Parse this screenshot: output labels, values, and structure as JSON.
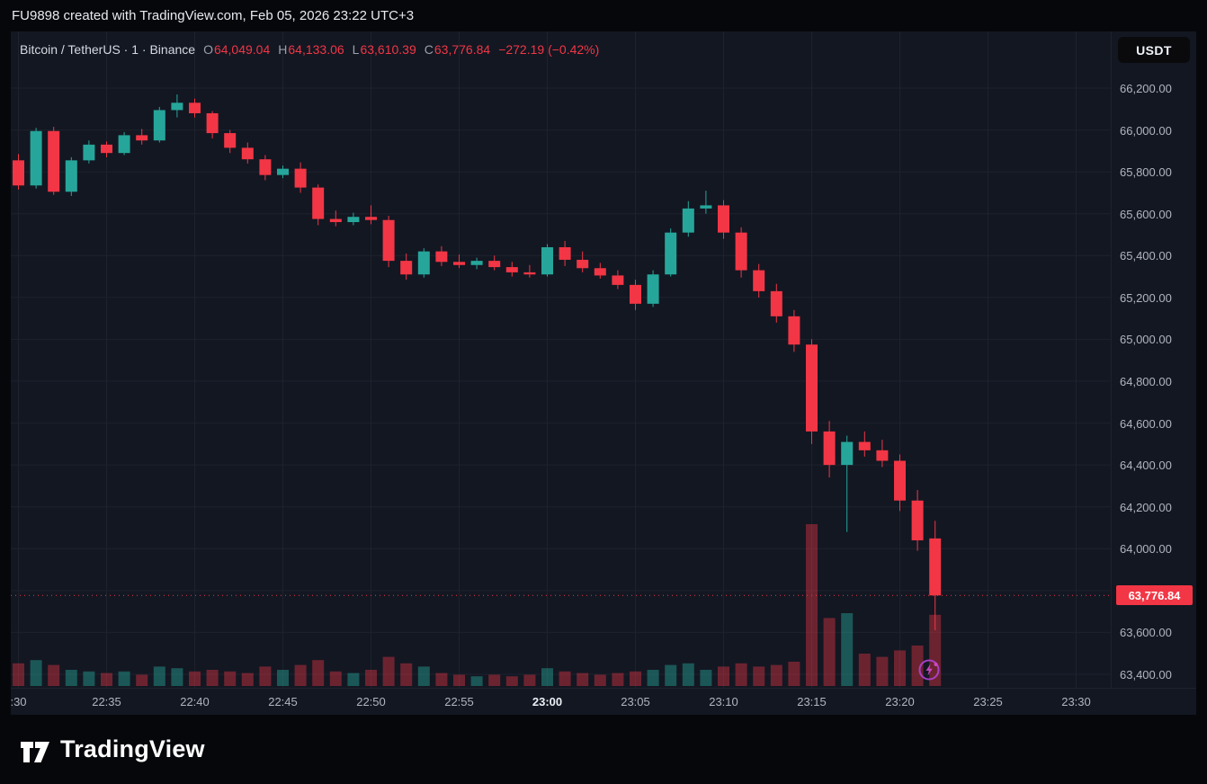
{
  "statusbar": {
    "text": "FU9898 created with TradingView.com, Feb 05, 2026 23:22 UTC+3"
  },
  "header": {
    "symbol_line": "Bitcoin / TetherUS · 1 · Binance",
    "ohlc": {
      "o_label": "O",
      "o": "64,049.04",
      "h_label": "H",
      "h": "64,133.06",
      "l_label": "L",
      "l": "63,610.39",
      "c_label": "C",
      "c": "63,776.84",
      "change": "−272.19 (−0.42%)"
    }
  },
  "currency_button": {
    "label": "USDT"
  },
  "price_line": {
    "label": "63,776.84",
    "value": 63776.84
  },
  "footer": {
    "logo_text": "TradingView"
  },
  "colors": {
    "up": "#26a69a",
    "down": "#f23645",
    "vol_up": "rgba(38,166,154,0.45)",
    "vol_down": "rgba(242,54,69,0.4)",
    "grid": "#1e222d",
    "axis_text": "#b2b5be",
    "price_line": "#f23645",
    "background": "#131722"
  },
  "chart_data": {
    "type": "candlestick",
    "title": "Bitcoin / TetherUS 1m Binance",
    "interval_minutes": 1,
    "visible_price_range": [
      63330,
      66470
    ],
    "grid": true,
    "price_ticks": [
      {
        "text": "66,200.00",
        "value": 66200
      },
      {
        "text": "66,000.00",
        "value": 66000
      },
      {
        "text": "65,800.00",
        "value": 65800
      },
      {
        "text": "65,600.00",
        "value": 65600
      },
      {
        "text": "65,400.00",
        "value": 65400
      },
      {
        "text": "65,200.00",
        "value": 65200
      },
      {
        "text": "65,000.00",
        "value": 65000
      },
      {
        "text": "64,800.00",
        "value": 64800
      },
      {
        "text": "64,600.00",
        "value": 64600
      },
      {
        "text": "64,400.00",
        "value": 64400
      },
      {
        "text": "64,200.00",
        "value": 64200
      },
      {
        "text": "64,000.00",
        "value": 64000
      },
      {
        "text": "63,800.00",
        "value": 63800
      },
      {
        "text": "63,600.00",
        "value": 63600
      },
      {
        "text": "63,400.00",
        "value": 63400
      }
    ],
    "time_ticks": [
      {
        "text": ":30",
        "minute": 0,
        "bold": false
      },
      {
        "text": "22:35",
        "minute": 5,
        "bold": false
      },
      {
        "text": "22:40",
        "minute": 10,
        "bold": false
      },
      {
        "text": "22:45",
        "minute": 15,
        "bold": false
      },
      {
        "text": "22:50",
        "minute": 20,
        "bold": false
      },
      {
        "text": "22:55",
        "minute": 25,
        "bold": false
      },
      {
        "text": "23:00",
        "minute": 30,
        "bold": true
      },
      {
        "text": "23:05",
        "minute": 35,
        "bold": false
      },
      {
        "text": "23:10",
        "minute": 40,
        "bold": false
      },
      {
        "text": "23:15",
        "minute": 45,
        "bold": false
      },
      {
        "text": "23:20",
        "minute": 50,
        "bold": false
      },
      {
        "text": "23:25",
        "minute": 55,
        "bold": false
      },
      {
        "text": "23:30",
        "minute": 60,
        "bold": false
      }
    ],
    "columns": [
      "time",
      "open",
      "high",
      "low",
      "close",
      "volume"
    ],
    "candles": [
      [
        "22:30",
        65855,
        65885,
        65715,
        65735,
        14
      ],
      [
        "22:31",
        65735,
        66010,
        65720,
        65995,
        16
      ],
      [
        "22:32",
        65995,
        66015,
        65690,
        65705,
        13
      ],
      [
        "22:33",
        65705,
        65870,
        65685,
        65855,
        10
      ],
      [
        "22:34",
        65855,
        65950,
        65840,
        65930,
        9
      ],
      [
        "22:35",
        65930,
        65945,
        65870,
        65890,
        8
      ],
      [
        "22:36",
        65890,
        65990,
        65880,
        65975,
        9
      ],
      [
        "22:37",
        65975,
        66005,
        65930,
        65950,
        7
      ],
      [
        "22:38",
        65950,
        66110,
        65940,
        66095,
        12
      ],
      [
        "22:39",
        66095,
        66170,
        66060,
        66130,
        11
      ],
      [
        "22:40",
        66130,
        66150,
        66060,
        66080,
        9
      ],
      [
        "22:41",
        66080,
        66090,
        65960,
        65985,
        10
      ],
      [
        "22:42",
        65985,
        66000,
        65890,
        65915,
        9
      ],
      [
        "22:43",
        65915,
        65940,
        65840,
        65860,
        8
      ],
      [
        "22:44",
        65860,
        65880,
        65760,
        65785,
        12
      ],
      [
        "22:45",
        65785,
        65830,
        65770,
        65815,
        10
      ],
      [
        "22:46",
        65815,
        65845,
        65700,
        65725,
        13
      ],
      [
        "22:47",
        65725,
        65740,
        65545,
        65575,
        16
      ],
      [
        "22:48",
        65575,
        65615,
        65540,
        65560,
        9
      ],
      [
        "22:49",
        65560,
        65605,
        65545,
        65585,
        8
      ],
      [
        "22:50",
        65585,
        65640,
        65550,
        65570,
        10
      ],
      [
        "22:51",
        65570,
        65590,
        65345,
        65375,
        18
      ],
      [
        "22:52",
        65375,
        65410,
        65285,
        65310,
        14
      ],
      [
        "22:53",
        65310,
        65435,
        65295,
        65420,
        12
      ],
      [
        "22:54",
        65420,
        65445,
        65350,
        65370,
        8
      ],
      [
        "22:55",
        65370,
        65405,
        65340,
        65355,
        7
      ],
      [
        "22:56",
        65355,
        65390,
        65335,
        65375,
        6
      ],
      [
        "22:57",
        65375,
        65400,
        65330,
        65345,
        7
      ],
      [
        "22:58",
        65345,
        65370,
        65300,
        65320,
        6
      ],
      [
        "22:59",
        65320,
        65355,
        65295,
        65310,
        7
      ],
      [
        "23:00",
        65310,
        65455,
        65300,
        65440,
        11
      ],
      [
        "23:01",
        65440,
        65470,
        65350,
        65380,
        9
      ],
      [
        "23:02",
        65380,
        65420,
        65320,
        65340,
        8
      ],
      [
        "23:03",
        65340,
        65365,
        65290,
        65305,
        7
      ],
      [
        "23:04",
        65305,
        65330,
        65240,
        65260,
        8
      ],
      [
        "23:05",
        65260,
        65285,
        65140,
        65170,
        9
      ],
      [
        "23:06",
        65170,
        65330,
        65155,
        65310,
        10
      ],
      [
        "23:07",
        65310,
        65530,
        65300,
        65510,
        13
      ],
      [
        "23:08",
        65510,
        65660,
        65490,
        65625,
        14
      ],
      [
        "23:09",
        65625,
        65710,
        65600,
        65640,
        10
      ],
      [
        "23:10",
        65640,
        65665,
        65480,
        65510,
        12
      ],
      [
        "23:11",
        65510,
        65535,
        65295,
        65330,
        14
      ],
      [
        "23:12",
        65330,
        65360,
        65200,
        65230,
        12
      ],
      [
        "23:13",
        65230,
        65265,
        65080,
        65110,
        13
      ],
      [
        "23:14",
        65110,
        65140,
        64940,
        64975,
        15
      ],
      [
        "23:15",
        64975,
        65000,
        64500,
        64560,
        100
      ],
      [
        "23:16",
        64560,
        64610,
        64340,
        64400,
        42
      ],
      [
        "23:17",
        64400,
        64540,
        64080,
        64510,
        45
      ],
      [
        "23:18",
        64510,
        64560,
        64440,
        64470,
        20
      ],
      [
        "23:19",
        64470,
        64520,
        64390,
        64420,
        18
      ],
      [
        "23:20",
        64420,
        64450,
        64180,
        64230,
        22
      ],
      [
        "23:21",
        64230,
        64280,
        63990,
        64040,
        25
      ],
      [
        "23:22",
        64049.04,
        64133.06,
        63610.39,
        63776.84,
        44
      ]
    ],
    "last_price": 63776.84,
    "ohlc_display": {
      "open": 64049.04,
      "high": 64133.06,
      "low": 63610.39,
      "close": 63776.84,
      "change": -272.19,
      "change_pct": -0.42
    }
  }
}
